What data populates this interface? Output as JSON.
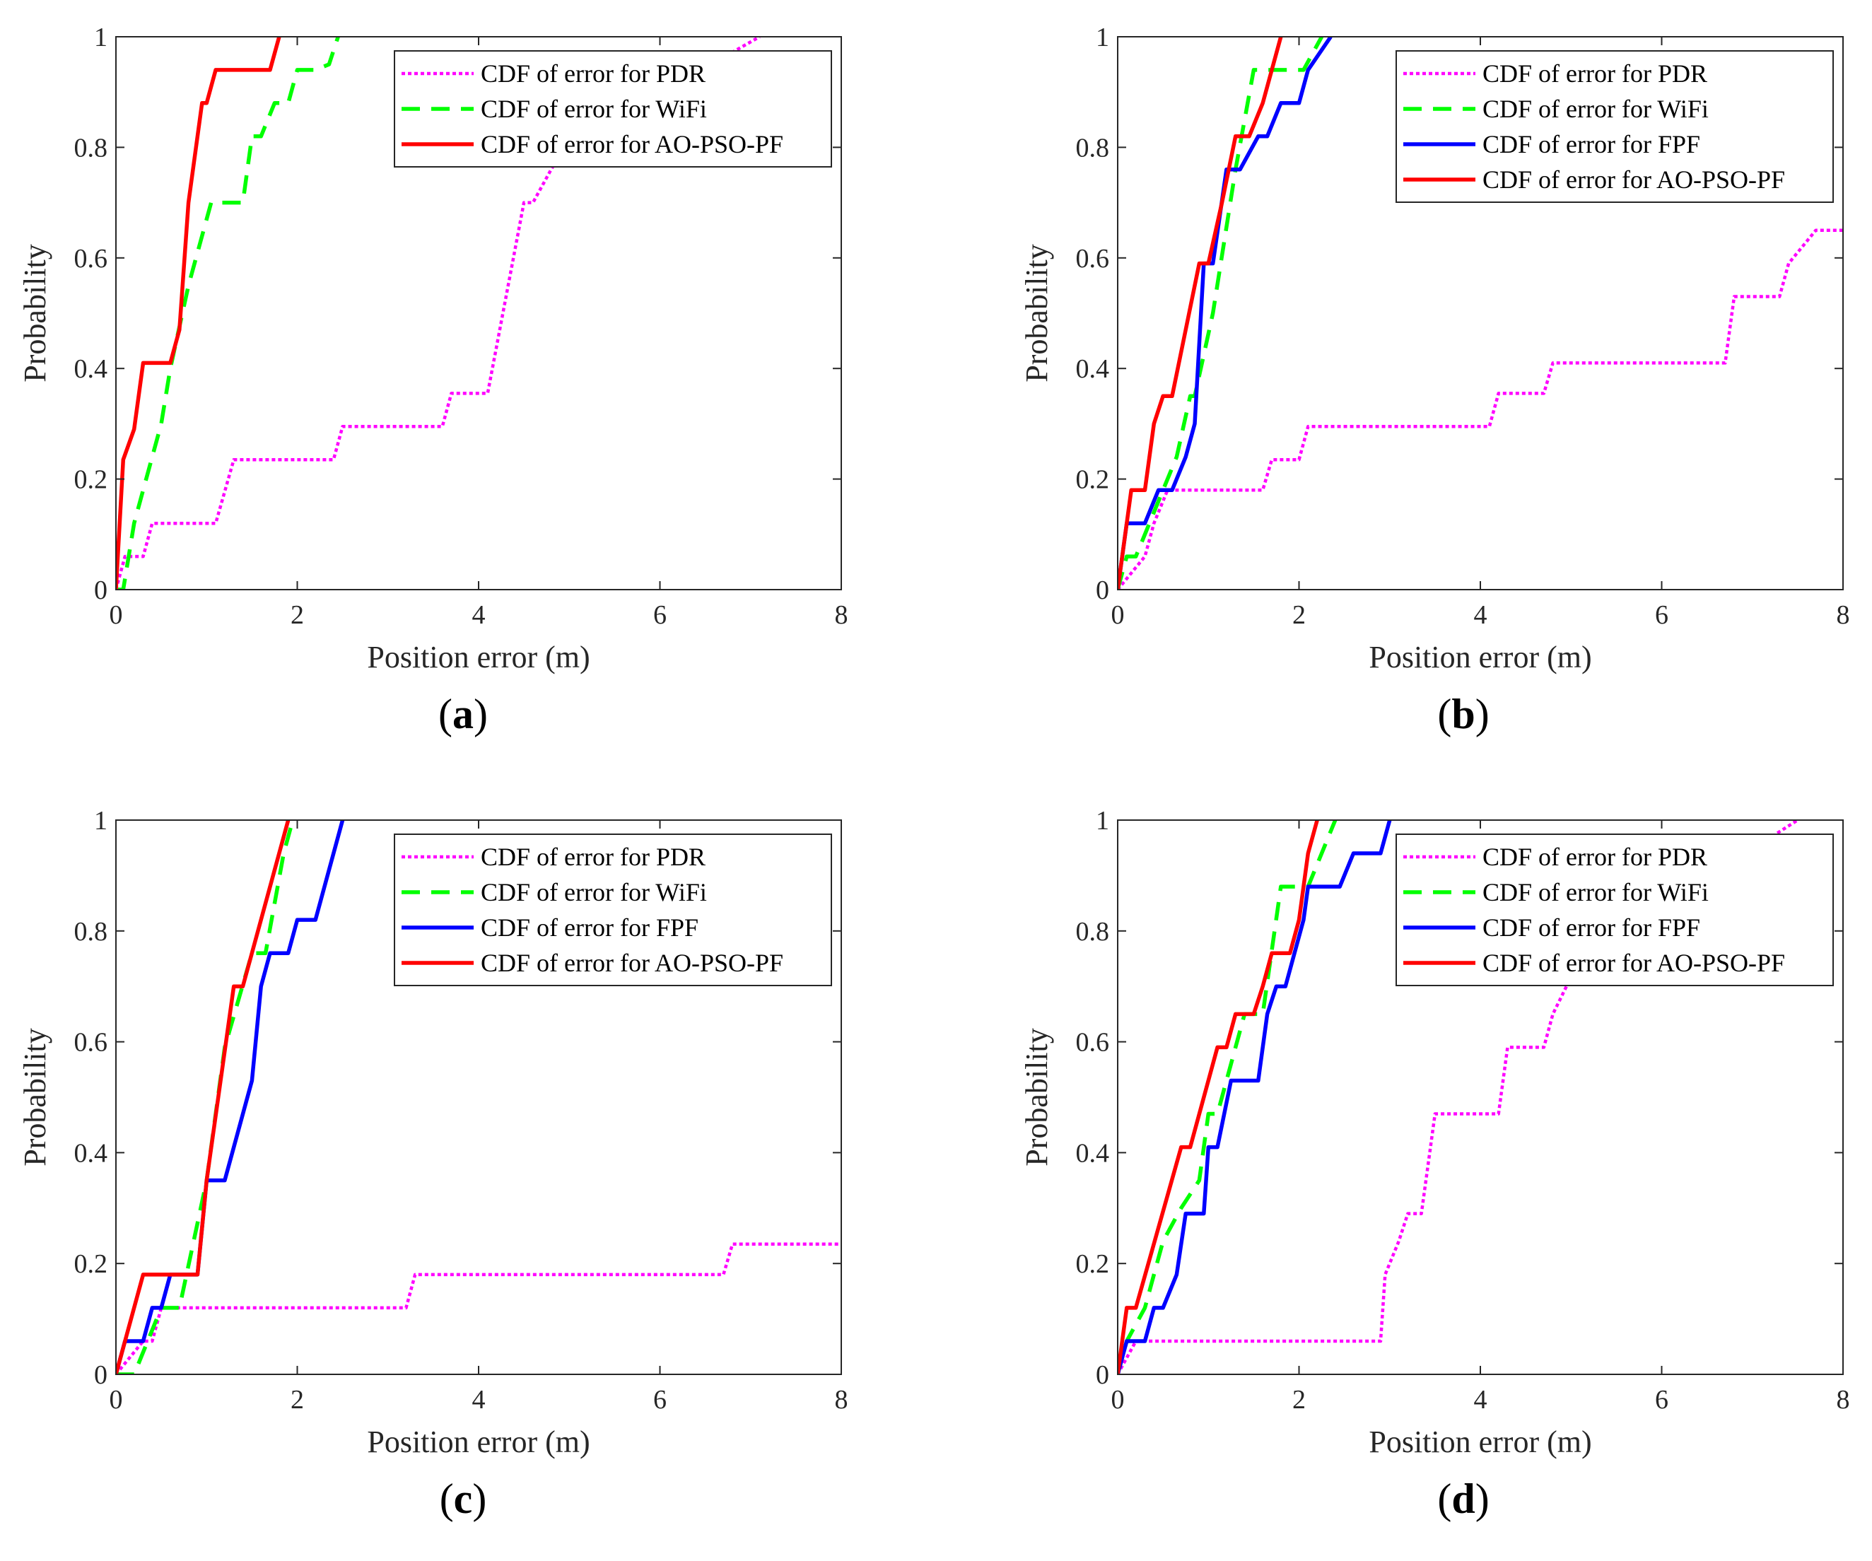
{
  "chart_data": [
    {
      "type": "line",
      "panel_label": "a",
      "xlabel": "Position error (m)",
      "ylabel": "Probability",
      "xlim": [
        0,
        8
      ],
      "ylim": [
        0,
        1
      ],
      "xticks": [
        "0",
        "2",
        "4",
        "6",
        "8"
      ],
      "yticks": [
        "0",
        "0.2",
        "0.4",
        "0.6",
        "0.8",
        "1"
      ],
      "legend_position": "top-right",
      "series": [
        {
          "name": "CDF of error for PDR",
          "color": "#ff00ff",
          "style": "dotted",
          "x": [
            0,
            0.1,
            0.2,
            0.3,
            0.4,
            1.1,
            1.3,
            2.4,
            2.5,
            3.6,
            3.7,
            4.1,
            4.5,
            4.6,
            4.8,
            4.95,
            7.1
          ],
          "y": [
            0,
            0.06,
            0.06,
            0.06,
            0.12,
            0.12,
            0.235,
            0.235,
            0.295,
            0.295,
            0.355,
            0.355,
            0.7,
            0.7,
            0.76,
            0.8,
            1
          ]
        },
        {
          "name": "CDF of error for WiFi",
          "color": "#00ff00",
          "style": "dashed",
          "x": [
            0,
            0.08,
            0.2,
            0.3,
            0.5,
            0.6,
            0.8,
            1.05,
            1.1,
            1.4,
            1.5,
            1.6,
            1.75,
            1.9,
            2.0,
            2.2,
            2.35,
            2.45
          ],
          "y": [
            0,
            0.0,
            0.12,
            0.18,
            0.3,
            0.4,
            0.55,
            0.7,
            0.7,
            0.7,
            0.82,
            0.82,
            0.88,
            0.88,
            0.94,
            0.94,
            0.95,
            1
          ]
        },
        {
          "name": "CDF of error for AO-PSO-PF",
          "color": "#ff0000",
          "style": "solid",
          "x": [
            0,
            0.08,
            0.2,
            0.3,
            0.6,
            0.7,
            0.8,
            0.95,
            1.0,
            1.1,
            1.7,
            1.8
          ],
          "y": [
            0,
            0.235,
            0.29,
            0.41,
            0.41,
            0.47,
            0.7,
            0.88,
            0.88,
            0.94,
            0.94,
            1
          ]
        }
      ]
    },
    {
      "type": "line",
      "panel_label": "b",
      "xlabel": "Position error (m)",
      "ylabel": "Probability",
      "xlim": [
        0,
        8
      ],
      "ylim": [
        0,
        1
      ],
      "xticks": [
        "0",
        "2",
        "4",
        "6",
        "8"
      ],
      "yticks": [
        "0",
        "0.2",
        "0.4",
        "0.6",
        "0.8",
        "1"
      ],
      "legend_position": "top-right",
      "series": [
        {
          "name": "CDF of error for PDR",
          "color": "#ff00ff",
          "style": "dotted",
          "x": [
            0,
            0.3,
            0.4,
            0.55,
            1.6,
            1.7,
            2.0,
            2.1,
            4.1,
            4.2,
            4.7,
            4.8,
            6.7,
            6.8,
            7.3,
            7.4,
            7.7,
            8.0
          ],
          "y": [
            0,
            0.06,
            0.12,
            0.18,
            0.18,
            0.235,
            0.235,
            0.295,
            0.295,
            0.355,
            0.355,
            0.41,
            0.41,
            0.53,
            0.53,
            0.59,
            0.65,
            0.65
          ]
        },
        {
          "name": "CDF of error for WiFi",
          "color": "#00ff00",
          "style": "dashed",
          "x": [
            0,
            0.1,
            0.2,
            0.35,
            0.5,
            0.65,
            0.8,
            0.85,
            1.05,
            1.3,
            1.5,
            1.55,
            2.05,
            2.25
          ],
          "y": [
            0,
            0.06,
            0.06,
            0.12,
            0.18,
            0.24,
            0.35,
            0.35,
            0.5,
            0.76,
            0.94,
            0.94,
            0.94,
            1
          ]
        },
        {
          "name": "CDF of error for FPF",
          "color": "#0000ff",
          "style": "solid",
          "x": [
            0,
            0.1,
            0.3,
            0.45,
            0.6,
            0.75,
            0.85,
            0.95,
            1.05,
            1.2,
            1.35,
            1.55,
            1.65,
            1.8,
            2.0,
            2.1,
            2.35
          ],
          "y": [
            0,
            0.12,
            0.12,
            0.18,
            0.18,
            0.24,
            0.3,
            0.59,
            0.59,
            0.76,
            0.76,
            0.82,
            0.82,
            0.88,
            0.88,
            0.94,
            1
          ]
        },
        {
          "name": "CDF of error for AO-PSO-PF",
          "color": "#ff0000",
          "style": "solid",
          "x": [
            0,
            0.15,
            0.3,
            0.4,
            0.5,
            0.6,
            0.75,
            0.9,
            1.0,
            1.15,
            1.3,
            1.45,
            1.6,
            1.8
          ],
          "y": [
            0,
            0.18,
            0.18,
            0.3,
            0.35,
            0.35,
            0.47,
            0.59,
            0.59,
            0.7,
            0.82,
            0.82,
            0.88,
            1
          ]
        }
      ]
    },
    {
      "type": "line",
      "panel_label": "c",
      "xlabel": "Position error (m)",
      "ylabel": "Probability",
      "xlim": [
        0,
        8
      ],
      "ylim": [
        0,
        1
      ],
      "xticks": [
        "0",
        "2",
        "4",
        "6",
        "8"
      ],
      "yticks": [
        "0",
        "0.2",
        "0.4",
        "0.6",
        "0.8",
        "1"
      ],
      "legend_position": "top-right",
      "series": [
        {
          "name": "CDF of error for PDR",
          "color": "#ff00ff",
          "style": "dotted",
          "x": [
            0,
            0.3,
            0.4,
            0.5,
            3.2,
            3.3,
            6.7,
            6.8,
            8.0
          ],
          "y": [
            0,
            0.06,
            0.06,
            0.12,
            0.12,
            0.18,
            0.18,
            0.235,
            0.235
          ]
        },
        {
          "name": "CDF of error for WiFi",
          "color": "#00ff00",
          "style": "dashed",
          "x": [
            0,
            0.2,
            0.5,
            0.7,
            1.0,
            1.2,
            1.5,
            1.65,
            1.85,
            1.95
          ],
          "y": [
            0,
            0.0,
            0.12,
            0.12,
            0.35,
            0.59,
            0.76,
            0.76,
            0.94,
            1
          ]
        },
        {
          "name": "CDF of error for FPF",
          "color": "#0000ff",
          "style": "solid",
          "x": [
            0,
            0.1,
            0.3,
            0.4,
            0.5,
            0.6,
            0.9,
            1.0,
            1.2,
            1.5,
            1.6,
            1.7,
            1.9,
            2.0,
            2.2,
            2.5
          ],
          "y": [
            0,
            0.06,
            0.06,
            0.12,
            0.12,
            0.18,
            0.18,
            0.35,
            0.35,
            0.53,
            0.7,
            0.76,
            0.76,
            0.82,
            0.82,
            1
          ]
        },
        {
          "name": "CDF of error for AO-PSO-PF",
          "color": "#ff0000",
          "style": "solid",
          "x": [
            0,
            0.3,
            0.9,
            1.0,
            1.3,
            1.4,
            1.9
          ],
          "y": [
            0,
            0.18,
            0.18,
            0.35,
            0.7,
            0.7,
            1
          ]
        }
      ]
    },
    {
      "type": "line",
      "panel_label": "d",
      "xlabel": "Position error (m)",
      "ylabel": "Probability",
      "xlim": [
        0,
        8
      ],
      "ylim": [
        0,
        1
      ],
      "xticks": [
        "0",
        "2",
        "4",
        "6",
        "8"
      ],
      "yticks": [
        "0",
        "0.2",
        "0.4",
        "0.6",
        "0.8",
        "1"
      ],
      "legend_position": "top-right",
      "series": [
        {
          "name": "CDF of error for PDR",
          "color": "#ff00ff",
          "style": "dotted",
          "x": [
            0,
            0.2,
            2.9,
            2.95,
            3.1,
            3.2,
            3.35,
            3.5,
            4.2,
            4.3,
            4.7,
            4.8,
            4.95,
            5.2,
            7.5
          ],
          "y": [
            0,
            0.06,
            0.06,
            0.18,
            0.24,
            0.29,
            0.29,
            0.47,
            0.47,
            0.59,
            0.59,
            0.65,
            0.7,
            0.76,
            1
          ]
        },
        {
          "name": "CDF of error for WiFi",
          "color": "#00ff00",
          "style": "dashed",
          "x": [
            0,
            0.1,
            0.3,
            0.5,
            0.7,
            0.9,
            1.0,
            1.1,
            1.3,
            1.4,
            1.6,
            1.8,
            2.1,
            2.4
          ],
          "y": [
            0,
            0.06,
            0.12,
            0.24,
            0.3,
            0.35,
            0.47,
            0.47,
            0.59,
            0.65,
            0.65,
            0.88,
            0.88,
            1
          ]
        },
        {
          "name": "CDF of error for FPF",
          "color": "#0000ff",
          "style": "solid",
          "x": [
            0,
            0.1,
            0.3,
            0.4,
            0.5,
            0.65,
            0.75,
            0.95,
            1.0,
            1.1,
            1.25,
            1.55,
            1.65,
            1.75,
            1.85,
            2.05,
            2.1,
            2.45,
            2.6,
            2.9,
            3.0
          ],
          "y": [
            0,
            0.06,
            0.06,
            0.12,
            0.12,
            0.18,
            0.29,
            0.29,
            0.41,
            0.41,
            0.53,
            0.53,
            0.65,
            0.7,
            0.7,
            0.82,
            0.88,
            0.88,
            0.94,
            0.94,
            1
          ]
        },
        {
          "name": "CDF of error for AO-PSO-PF",
          "color": "#ff0000",
          "style": "solid",
          "x": [
            0,
            0.1,
            0.2,
            0.7,
            0.8,
            1.1,
            1.2,
            1.3,
            1.5,
            1.6,
            1.7,
            1.9,
            2.0,
            2.1,
            2.2
          ],
          "y": [
            0,
            0.12,
            0.12,
            0.41,
            0.41,
            0.59,
            0.59,
            0.65,
            0.65,
            0.7,
            0.76,
            0.76,
            0.82,
            0.94,
            1
          ]
        }
      ]
    }
  ]
}
